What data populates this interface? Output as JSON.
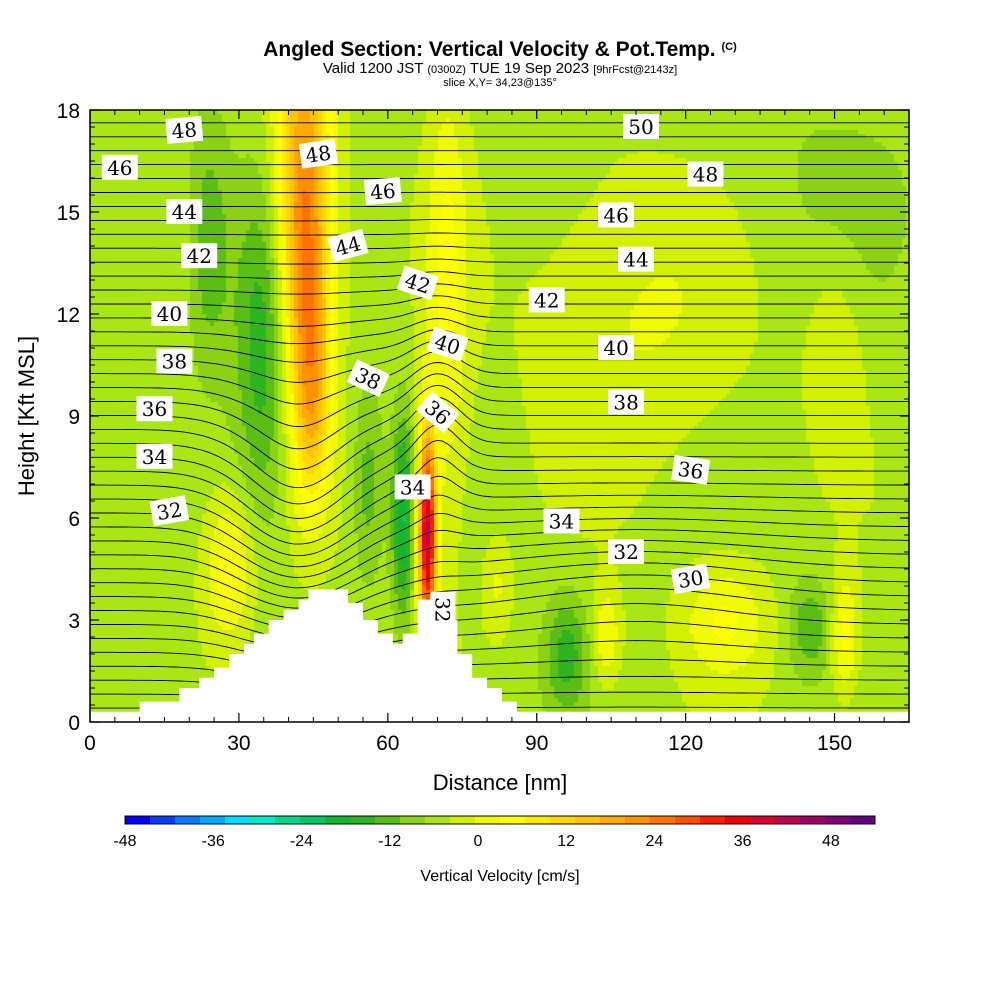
{
  "header": {
    "title": "Angled Section: Vertical Velocity & Pot.Temp.",
    "title_badge": "(C)",
    "valid_prefix": "Valid 1200 JST",
    "valid_zulu": "(0300Z)",
    "valid_date": "TUE 19 Sep 2023",
    "forecast": "[9hrFcst@2143z]",
    "slice": "slice X,Y= 34,23@135°"
  },
  "chart_data": {
    "type": "heatmap",
    "xlabel": "Distance [nm]",
    "ylabel": "Height [Kft MSL]",
    "xlim": [
      0,
      165
    ],
    "ylim": [
      0,
      18
    ],
    "xticks": [
      "0",
      "30",
      "60",
      "90",
      "120",
      "150"
    ],
    "yticks": [
      "0",
      "3",
      "6",
      "9",
      "12",
      "15",
      "18"
    ],
    "colorbar": {
      "label": "Vertical Velocity [cm/s]",
      "range": [
        -48,
        54
      ],
      "step": 4,
      "tick_labels": [
        "-48",
        "-36",
        "-24",
        "-12",
        "0",
        "12",
        "24",
        "36",
        "48"
      ],
      "colors": [
        "#0000ff",
        "#0a3cff",
        "#0a78ff",
        "#00aaff",
        "#00dcff",
        "#00e8c8",
        "#00d890",
        "#00c864",
        "#10b832",
        "#2eb41e",
        "#5abe14",
        "#8cd214",
        "#aae614",
        "#d2f000",
        "#f0fa00",
        "#ffff00",
        "#ffeb00",
        "#ffd700",
        "#ffc300",
        "#ffaa00",
        "#ff9100",
        "#ff7300",
        "#ff5000",
        "#ff1e00",
        "#f00000",
        "#dc0032",
        "#be0050",
        "#a00064",
        "#820078",
        "#640082"
      ]
    },
    "terrain_profile": [
      [
        0,
        0.3
      ],
      [
        10,
        0.3
      ],
      [
        10,
        0.6
      ],
      [
        18,
        0.6
      ],
      [
        18,
        1.0
      ],
      [
        22,
        1.0
      ],
      [
        22,
        1.3
      ],
      [
        25,
        1.3
      ],
      [
        25,
        1.6
      ],
      [
        28,
        1.6
      ],
      [
        28,
        2.0
      ],
      [
        31,
        2.0
      ],
      [
        31,
        2.3
      ],
      [
        33,
        2.3
      ],
      [
        33,
        2.6
      ],
      [
        36,
        2.6
      ],
      [
        36,
        3.0
      ],
      [
        39,
        3.0
      ],
      [
        39,
        3.3
      ],
      [
        42,
        3.3
      ],
      [
        42,
        3.6
      ],
      [
        44,
        3.6
      ],
      [
        44,
        3.9
      ],
      [
        52,
        3.9
      ],
      [
        52,
        3.5
      ],
      [
        55,
        3.5
      ],
      [
        55,
        3.0
      ],
      [
        58,
        3.0
      ],
      [
        58,
        2.6
      ],
      [
        61,
        2.6
      ],
      [
        61,
        2.3
      ],
      [
        63,
        2.3
      ],
      [
        63,
        2.6
      ],
      [
        66,
        2.6
      ],
      [
        66,
        3.6
      ],
      [
        71,
        3.6
      ],
      [
        71,
        3.0
      ],
      [
        74,
        3.0
      ],
      [
        74,
        2.0
      ],
      [
        77,
        2.0
      ],
      [
        77,
        1.3
      ],
      [
        80,
        1.3
      ],
      [
        80,
        1.0
      ],
      [
        83,
        1.0
      ],
      [
        83,
        0.6
      ],
      [
        86,
        0.6
      ],
      [
        86,
        0.3
      ],
      [
        165,
        0.3
      ]
    ],
    "velocity_features": [
      {
        "x": 43,
        "y": 15.5,
        "sx": 4,
        "sy": 4,
        "v": 30
      },
      {
        "x": 44,
        "y": 11.5,
        "sx": 3,
        "sy": 3,
        "v": 14
      },
      {
        "x": 45,
        "y": 9,
        "sx": 2.5,
        "sy": 2,
        "v": 12
      },
      {
        "x": 68,
        "y": 5.5,
        "sx": 1.3,
        "sy": 2.2,
        "v": 54
      },
      {
        "x": 72,
        "y": 12.5,
        "sx": 3,
        "sy": 5,
        "v": 10
      },
      {
        "x": 35,
        "y": 11,
        "sx": 4,
        "sy": 3.5,
        "v": -14
      },
      {
        "x": 24,
        "y": 14,
        "sx": 3,
        "sy": 2.5,
        "v": -10
      },
      {
        "x": 63,
        "y": 6,
        "sx": 1.5,
        "sy": 2,
        "v": -18
      },
      {
        "x": 56,
        "y": 7,
        "sx": 2,
        "sy": 2,
        "v": -8
      },
      {
        "x": 28,
        "y": 4.5,
        "sx": 3.5,
        "sy": 1.5,
        "v": 12
      },
      {
        "x": 96,
        "y": 2,
        "sx": 3,
        "sy": 1.2,
        "v": -12
      },
      {
        "x": 145,
        "y": 2.8,
        "sx": 3,
        "sy": 1,
        "v": -10
      },
      {
        "x": 128,
        "y": 3,
        "sx": 6,
        "sy": 1.2,
        "v": 10
      },
      {
        "x": 152,
        "y": 2.5,
        "sx": 2,
        "sy": 1.2,
        "v": 12
      },
      {
        "x": 104,
        "y": 2.5,
        "sx": 2,
        "sy": 1,
        "v": 10
      },
      {
        "x": 82,
        "y": 4,
        "sx": 2,
        "sy": 1,
        "v": 6
      },
      {
        "x": 110,
        "y": 12,
        "sx": 15,
        "sy": 3,
        "v": 6
      },
      {
        "x": 150,
        "y": 11,
        "sx": 4,
        "sy": 2,
        "v": 6
      },
      {
        "x": 6,
        "y": 13,
        "sx": 4,
        "sy": 4,
        "v": -3
      },
      {
        "x": 150,
        "y": 16,
        "sx": 15,
        "sy": 3,
        "v": -3
      }
    ],
    "theta_contour_labels": [
      {
        "text": "48",
        "x": 19,
        "y": 17.4,
        "rot": -5
      },
      {
        "text": "48",
        "x": 46,
        "y": 16.7,
        "rot": -8
      },
      {
        "text": "46",
        "x": 6,
        "y": 16.3,
        "rot": 0
      },
      {
        "text": "46",
        "x": 59,
        "y": 15.6,
        "rot": -5
      },
      {
        "text": "44",
        "x": 19,
        "y": 15.0,
        "rot": 0
      },
      {
        "text": "44",
        "x": 52,
        "y": 14.0,
        "rot": -15
      },
      {
        "text": "42",
        "x": 22,
        "y": 13.7,
        "rot": 0
      },
      {
        "text": "42",
        "x": 66,
        "y": 12.9,
        "rot": 18
      },
      {
        "text": "40",
        "x": 16,
        "y": 12.0,
        "rot": 0
      },
      {
        "text": "40",
        "x": 72,
        "y": 11.1,
        "rot": 18
      },
      {
        "text": "38",
        "x": 17,
        "y": 10.6,
        "rot": 0
      },
      {
        "text": "38",
        "x": 56,
        "y": 10.1,
        "rot": 25
      },
      {
        "text": "36",
        "x": 13,
        "y": 9.2,
        "rot": 0
      },
      {
        "text": "36",
        "x": 70,
        "y": 9.1,
        "rot": 40
      },
      {
        "text": "34",
        "x": 13,
        "y": 7.8,
        "rot": 0
      },
      {
        "text": "34",
        "x": 65,
        "y": 6.9,
        "rot": 0
      },
      {
        "text": "32",
        "x": 16,
        "y": 6.2,
        "rot": -10
      },
      {
        "text": "32",
        "x": 71,
        "y": 3.3,
        "rot": 90
      },
      {
        "text": "50",
        "x": 111,
        "y": 17.5,
        "rot": 0
      },
      {
        "text": "48",
        "x": 124,
        "y": 16.1,
        "rot": 0
      },
      {
        "text": "46",
        "x": 106,
        "y": 14.9,
        "rot": 0
      },
      {
        "text": "44",
        "x": 110,
        "y": 13.6,
        "rot": 0
      },
      {
        "text": "42",
        "x": 92,
        "y": 12.4,
        "rot": 0
      },
      {
        "text": "40",
        "x": 106,
        "y": 11.0,
        "rot": 0
      },
      {
        "text": "38",
        "x": 108,
        "y": 9.4,
        "rot": 0
      },
      {
        "text": "36",
        "x": 121,
        "y": 7.4,
        "rot": 8
      },
      {
        "text": "34",
        "x": 95,
        "y": 5.9,
        "rot": 0
      },
      {
        "text": "32",
        "x": 108,
        "y": 5.0,
        "rot": 0
      },
      {
        "text": "30",
        "x": 121,
        "y": 4.2,
        "rot": -10
      }
    ],
    "theta_levels": [
      29,
      29.5,
      30,
      30.5,
      31,
      31.5,
      32,
      32.5,
      33,
      33.5,
      34,
      34.5,
      35,
      35.5,
      36,
      36.5,
      37,
      37.5,
      38,
      38.5,
      39,
      39.5,
      40,
      40.5,
      41,
      41.5,
      42,
      42.5,
      43,
      43.5,
      44,
      44.5,
      45,
      45.5,
      46,
      46.5,
      47,
      47.5,
      48,
      48.5,
      49,
      49.5,
      50,
      50.5
    ]
  }
}
